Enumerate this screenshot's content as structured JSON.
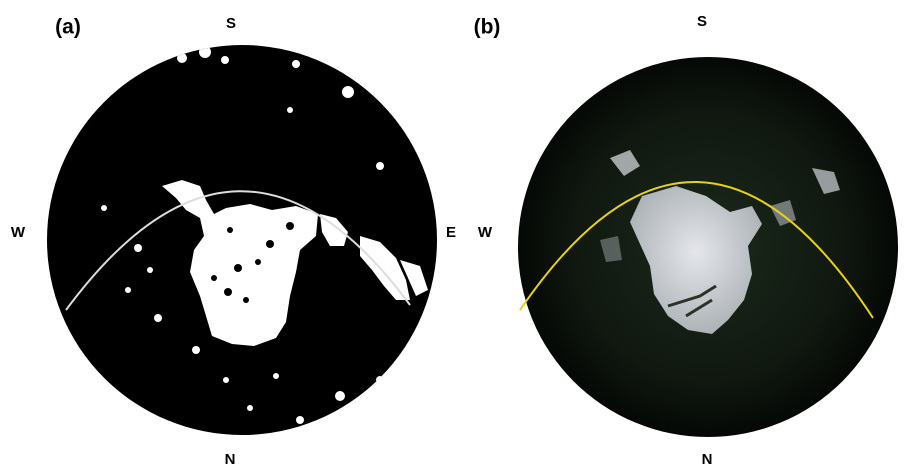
{
  "panels": [
    {
      "label": "(a)",
      "directions": {
        "south": "S",
        "west": "W",
        "east": "E",
        "north": "N"
      }
    },
    {
      "label": "(b)",
      "directions": {
        "south": "S",
        "west": "W",
        "north": "N"
      }
    }
  ]
}
